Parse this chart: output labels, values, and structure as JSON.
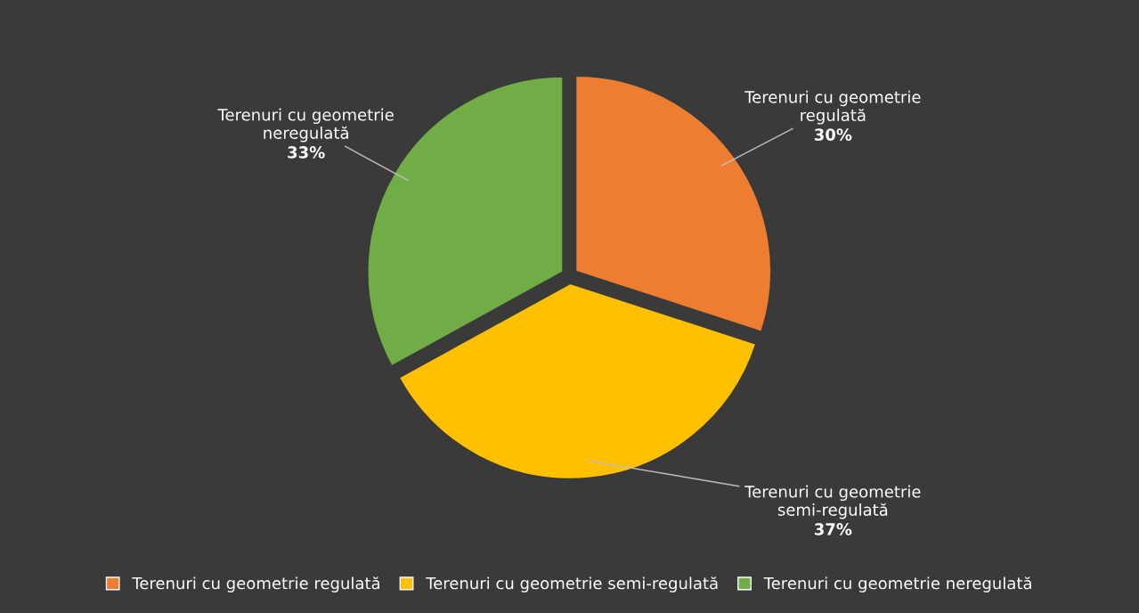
{
  "chart_data": {
    "type": "pie",
    "categories": [
      "Terenuri cu geometrie regulată",
      "Terenuri cu geometrie semi-regulată",
      "Terenuri cu geometrie neregulată"
    ],
    "values": [
      30,
      37,
      33
    ],
    "colors": [
      "#ed7d31",
      "#ffc000",
      "#70ad47"
    ],
    "value_labels": [
      "30%",
      "37%",
      "33%"
    ],
    "legend": "bottom"
  }
}
